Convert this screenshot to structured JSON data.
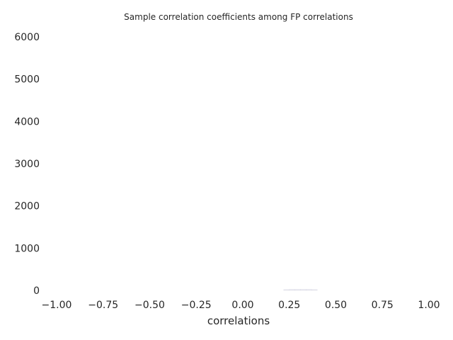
{
  "chart_data": {
    "type": "bar",
    "title": "Sample correlation coefficients among FP correlations",
    "xlabel": "correlations",
    "ylabel": "",
    "xlim": [
      -1.0,
      1.0
    ],
    "ylim": [
      0,
      6000
    ],
    "grid": false,
    "x_ticks": [
      "−1.00",
      "−0.75",
      "−0.50",
      "−0.25",
      "0.00",
      "0.25",
      "0.50",
      "0.75",
      "1.00"
    ],
    "x_tick_values": [
      -1.0,
      -0.75,
      -0.5,
      -0.25,
      0.0,
      0.25,
      0.5,
      0.75,
      1.0
    ],
    "y_ticks": [
      "0",
      "1000",
      "2000",
      "3000",
      "4000",
      "5000",
      "6000"
    ],
    "y_tick_values": [
      0,
      1000,
      2000,
      3000,
      4000,
      5000,
      6000
    ],
    "bins": [
      {
        "x0": 0.22,
        "x1": 0.25,
        "value": 20
      },
      {
        "x0": 0.25,
        "x1": 0.28,
        "value": 25
      },
      {
        "x0": 0.28,
        "x1": 0.31,
        "value": 25
      },
      {
        "x0": 0.31,
        "x1": 0.34,
        "value": 25
      },
      {
        "x0": 0.34,
        "x1": 0.37,
        "value": 25
      },
      {
        "x0": 0.37,
        "x1": 0.4,
        "value": 20
      }
    ],
    "colors": {
      "bar_fill": "#eaeaf2",
      "bar_edge": "#dddde6",
      "text": "#262626"
    }
  }
}
